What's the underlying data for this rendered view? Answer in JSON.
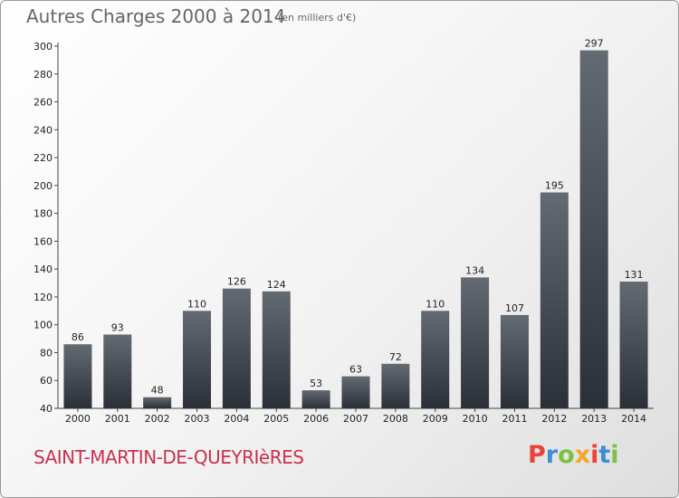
{
  "header": {
    "title": "Autres Charges 2000 à 2014",
    "subtitle": "(en milliers d'€)"
  },
  "footer": {
    "commune": "SAINT-MARTIN-DE-QUEYRIèRES",
    "logo_text": "Proxiti"
  },
  "colors": {
    "bar_top": "#646a72",
    "bar_bottom": "#2b3038",
    "commune_text": "#c8324e",
    "logo": [
      "#e8443a",
      "#3a8fd8",
      "#7cc242",
      "#f5a623",
      "#e8443a",
      "#3a8fd8",
      "#7cc242"
    ]
  },
  "chart_data": {
    "type": "bar",
    "title": "Autres Charges 2000 à 2014",
    "subtitle": "(en milliers d'€)",
    "categories": [
      "2000",
      "2001",
      "2002",
      "2003",
      "2004",
      "2005",
      "2006",
      "2007",
      "2008",
      "2009",
      "2010",
      "2011",
      "2012",
      "2013",
      "2014"
    ],
    "values": [
      86,
      93,
      48,
      110,
      126,
      124,
      53,
      63,
      72,
      110,
      134,
      107,
      195,
      297,
      131
    ],
    "ylim": [
      40,
      300
    ],
    "yticks": [
      40,
      60,
      80,
      100,
      120,
      140,
      160,
      180,
      200,
      220,
      240,
      260,
      280,
      300
    ],
    "grid": false,
    "xlabel": "",
    "ylabel": ""
  }
}
